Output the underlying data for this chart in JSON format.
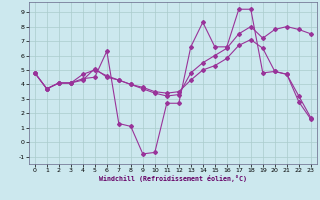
{
  "xlabel": "Windchill (Refroidissement éolien,°C)",
  "background_color": "#cce8ee",
  "grid_color": "#aacccc",
  "line_color": "#993399",
  "marker": "D",
  "markersize": 2.0,
  "linewidth": 0.8,
  "xlim": [
    -0.5,
    23.5
  ],
  "ylim": [
    -1.5,
    9.7
  ],
  "xticks": [
    0,
    1,
    2,
    3,
    4,
    5,
    6,
    7,
    8,
    9,
    10,
    11,
    12,
    13,
    14,
    15,
    16,
    17,
    18,
    19,
    20,
    21,
    22,
    23
  ],
  "yticks": [
    -1,
    0,
    1,
    2,
    3,
    4,
    5,
    6,
    7,
    8,
    9
  ],
  "series": [
    {
      "x": [
        0,
        1,
        2,
        3,
        4,
        5,
        6,
        7,
        8,
        9,
        10,
        11,
        12,
        13,
        14,
        15,
        16,
        17,
        18,
        19,
        20,
        21,
        22,
        23
      ],
      "y": [
        4.8,
        3.7,
        4.1,
        4.1,
        4.4,
        4.5,
        6.3,
        1.3,
        1.1,
        -0.8,
        -0.7,
        2.7,
        2.7,
        6.6,
        8.3,
        6.6,
        6.6,
        9.2,
        9.2,
        4.8,
        4.9,
        4.7,
        2.8,
        1.6
      ]
    },
    {
      "x": [
        0,
        1,
        2,
        3,
        4,
        5,
        6,
        7,
        8,
        9,
        10,
        11,
        12,
        13,
        14,
        15,
        16,
        17,
        18,
        19,
        20,
        21,
        22,
        23
      ],
      "y": [
        4.8,
        3.7,
        4.1,
        4.1,
        4.7,
        5.0,
        4.6,
        4.3,
        4.0,
        3.7,
        3.4,
        3.2,
        3.3,
        4.8,
        5.5,
        6.0,
        6.5,
        7.5,
        8.0,
        7.2,
        7.8,
        8.0,
        7.8,
        7.5
      ]
    },
    {
      "x": [
        0,
        1,
        2,
        3,
        4,
        5,
        6,
        7,
        8,
        9,
        10,
        11,
        12,
        13,
        14,
        15,
        16,
        17,
        18,
        19,
        20,
        21,
        22,
        23
      ],
      "y": [
        4.8,
        3.7,
        4.1,
        4.1,
        4.3,
        5.1,
        4.5,
        4.3,
        4.0,
        3.8,
        3.5,
        3.4,
        3.5,
        4.3,
        5.0,
        5.3,
        5.8,
        6.7,
        7.1,
        6.5,
        4.9,
        4.7,
        3.2,
        1.7
      ]
    }
  ]
}
